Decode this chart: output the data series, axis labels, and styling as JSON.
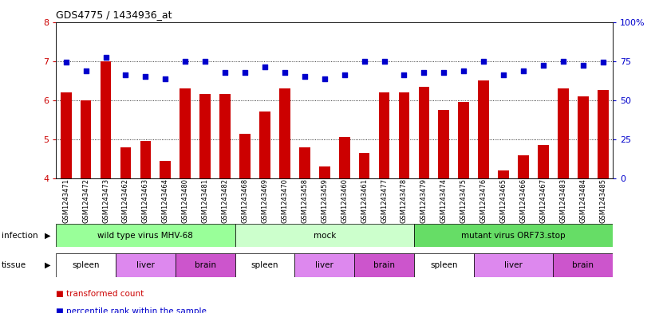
{
  "title": "GDS4775 / 1434936_at",
  "samples": [
    "GSM1243471",
    "GSM1243472",
    "GSM1243473",
    "GSM1243462",
    "GSM1243463",
    "GSM1243464",
    "GSM1243480",
    "GSM1243481",
    "GSM1243482",
    "GSM1243468",
    "GSM1243469",
    "GSM1243470",
    "GSM1243458",
    "GSM1243459",
    "GSM1243460",
    "GSM1243461",
    "GSM1243477",
    "GSM1243478",
    "GSM1243479",
    "GSM1243474",
    "GSM1243475",
    "GSM1243476",
    "GSM1243465",
    "GSM1243466",
    "GSM1243467",
    "GSM1243483",
    "GSM1243484",
    "GSM1243485"
  ],
  "bar_values": [
    6.2,
    6.0,
    7.0,
    4.8,
    4.95,
    4.45,
    6.3,
    6.15,
    6.15,
    5.15,
    5.7,
    6.3,
    4.8,
    4.3,
    5.05,
    4.65,
    6.2,
    6.2,
    6.35,
    5.75,
    5.95,
    6.5,
    4.2,
    4.6,
    4.85,
    6.3,
    6.1,
    6.25
  ],
  "dot_values": [
    6.98,
    6.75,
    7.1,
    6.65,
    6.6,
    6.55,
    7.0,
    7.0,
    6.7,
    6.7,
    6.85,
    6.7,
    6.6,
    6.55,
    6.65,
    7.0,
    7.0,
    6.65,
    6.7,
    6.7,
    6.75,
    7.0,
    6.65,
    6.75,
    6.9,
    7.0,
    6.9,
    6.98
  ],
  "ylim": [
    4.0,
    8.0
  ],
  "yticks_left": [
    4,
    5,
    6,
    7,
    8
  ],
  "yticks_right_vals": [
    0,
    25,
    50,
    75,
    100
  ],
  "yticks_right_labels": [
    "0",
    "25",
    "50",
    "75",
    "100%"
  ],
  "bar_color": "#cc0000",
  "dot_color": "#0000cc",
  "infection_groups": [
    {
      "label": "wild type virus MHV-68",
      "start": 0,
      "end": 9,
      "color": "#99ff99"
    },
    {
      "label": "mock",
      "start": 9,
      "end": 18,
      "color": "#ccffcc"
    },
    {
      "label": "mutant virus ORF73.stop",
      "start": 18,
      "end": 28,
      "color": "#66dd66"
    }
  ],
  "tissue_groups": [
    {
      "label": "spleen",
      "start": 0,
      "end": 3,
      "color": "#ffffff"
    },
    {
      "label": "liver",
      "start": 3,
      "end": 6,
      "color": "#dd88ee"
    },
    {
      "label": "brain",
      "start": 6,
      "end": 9,
      "color": "#cc55cc"
    },
    {
      "label": "spleen",
      "start": 9,
      "end": 12,
      "color": "#ffffff"
    },
    {
      "label": "liver",
      "start": 12,
      "end": 15,
      "color": "#dd88ee"
    },
    {
      "label": "brain",
      "start": 15,
      "end": 18,
      "color": "#cc55cc"
    },
    {
      "label": "spleen",
      "start": 18,
      "end": 21,
      "color": "#ffffff"
    },
    {
      "label": "liver",
      "start": 21,
      "end": 25,
      "color": "#dd88ee"
    },
    {
      "label": "brain",
      "start": 25,
      "end": 28,
      "color": "#cc55cc"
    }
  ],
  "legend_items": [
    {
      "label": "transformed count",
      "color": "#cc0000"
    },
    {
      "label": "percentile rank within the sample",
      "color": "#0000cc"
    }
  ],
  "background_color": "#ffffff",
  "grid_color": "#000000",
  "spine_color": "#000000"
}
